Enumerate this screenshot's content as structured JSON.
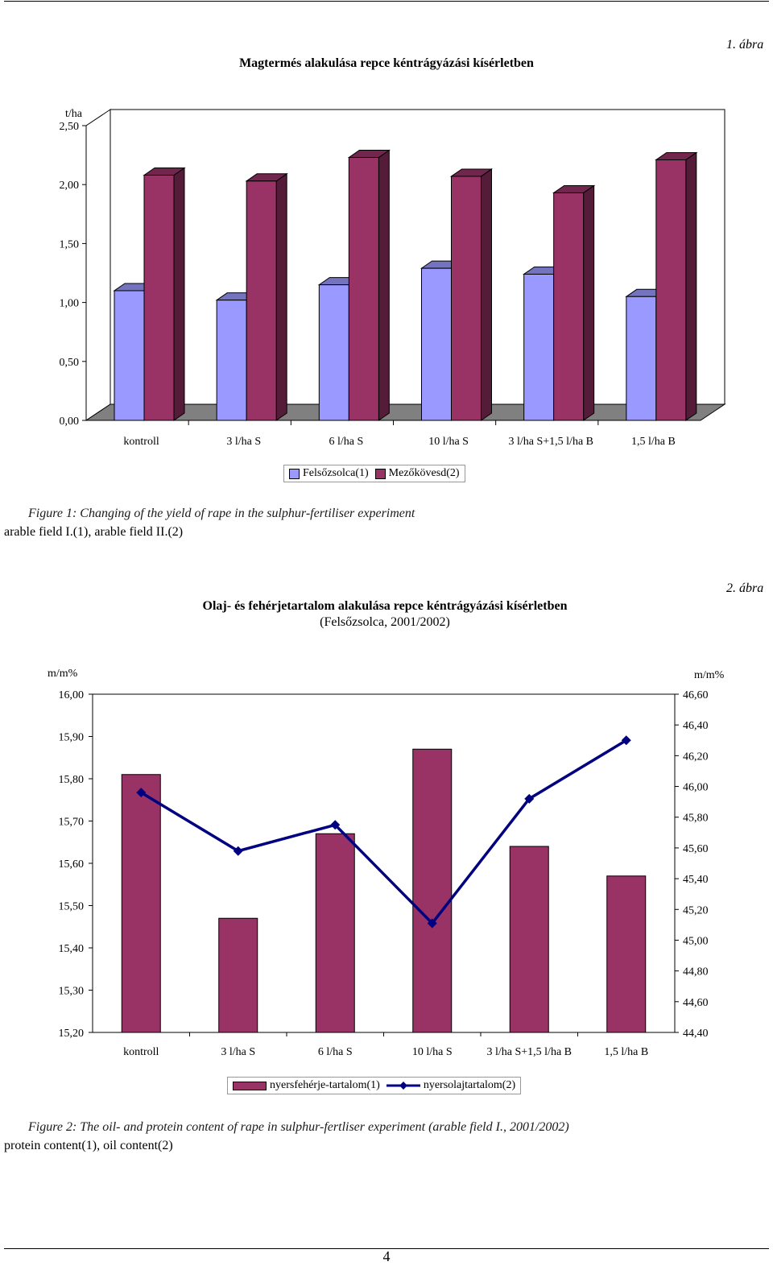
{
  "figure1": {
    "label": "1. ábra",
    "title": "Magtermés alakulása repce kéntrágyázási kísérletben",
    "caption_en": "Figure 1: Changing of the yield of rape in the sulphur-fertiliser experiment",
    "caption_sub": "arable field I.(1), arable field II.(2)"
  },
  "figure2": {
    "label": "2. ábra",
    "title_line1": "Olaj- és fehérjetartalom alakulása repce kéntrágyázási kísérletben",
    "title_line2": "(Felsőzsolca, 2001/2002)",
    "caption_en": "Figure 2: The oil- and protein content of rape in sulphur-fertliser experiment (arable field I., 2001/2002)",
    "caption_sub": "protein content(1), oil content(2)"
  },
  "page_number": "4",
  "chart_data": [
    {
      "type": "bar",
      "title": "Magtermés alakulása repce kéntrágyázási kísérletben",
      "ylabel": "t/ha",
      "ylim": [
        0,
        2.5
      ],
      "yticks": [
        "0,00",
        "0,50",
        "1,00",
        "1,50",
        "2,00",
        "2,50"
      ],
      "categories": [
        "kontroll",
        "3 l/ha S",
        "6 l/ha S",
        "10 l/ha S",
        "3 l/ha S+1,5 l/ha B",
        "1,5 l/ha B"
      ],
      "series": [
        {
          "name": "Felsőzsolca(1)",
          "color": "#9999ff",
          "values": [
            1.1,
            1.02,
            1.15,
            1.29,
            1.24,
            1.05
          ]
        },
        {
          "name": "Mezőkövesd(2)",
          "color": "#993366",
          "values": [
            2.08,
            2.03,
            2.23,
            2.07,
            1.93,
            2.21
          ]
        }
      ],
      "grid": false,
      "legend": "bottom"
    },
    {
      "type": "bar",
      "title": "Olaj- és fehérjetartalom alakulása repce kéntrágyázási kísérletben (Felsőzsolca, 2001/2002)",
      "ylabel": "m/m%",
      "y2label": "m/m%",
      "ylim": [
        15.2,
        16.0
      ],
      "y2lim": [
        44.4,
        46.6
      ],
      "yticks": [
        "15,20",
        "15,30",
        "15,40",
        "15,50",
        "15,60",
        "15,70",
        "15,80",
        "15,90",
        "16,00"
      ],
      "y2ticks": [
        "44,40",
        "44,60",
        "44,80",
        "45,00",
        "45,20",
        "45,40",
        "45,60",
        "45,80",
        "46,00",
        "46,20",
        "46,40",
        "46,60"
      ],
      "categories": [
        "kontroll",
        "3 l/ha S",
        "6 l/ha S",
        "10 l/ha S",
        "3 l/ha S+1,5 l/ha B",
        "1,5 l/ha B"
      ],
      "series": [
        {
          "name": "nyersfehérje-tartalom(1)",
          "type": "bar",
          "axis": "left",
          "color": "#993366",
          "values": [
            15.81,
            15.47,
            15.67,
            15.87,
            15.64,
            15.57
          ]
        },
        {
          "name": "nyersolajtartalom(2)",
          "type": "line",
          "axis": "right",
          "color": "#000080",
          "values": [
            45.96,
            45.58,
            45.75,
            45.11,
            45.92,
            46.3
          ]
        }
      ],
      "grid": false,
      "legend": "bottom"
    }
  ]
}
